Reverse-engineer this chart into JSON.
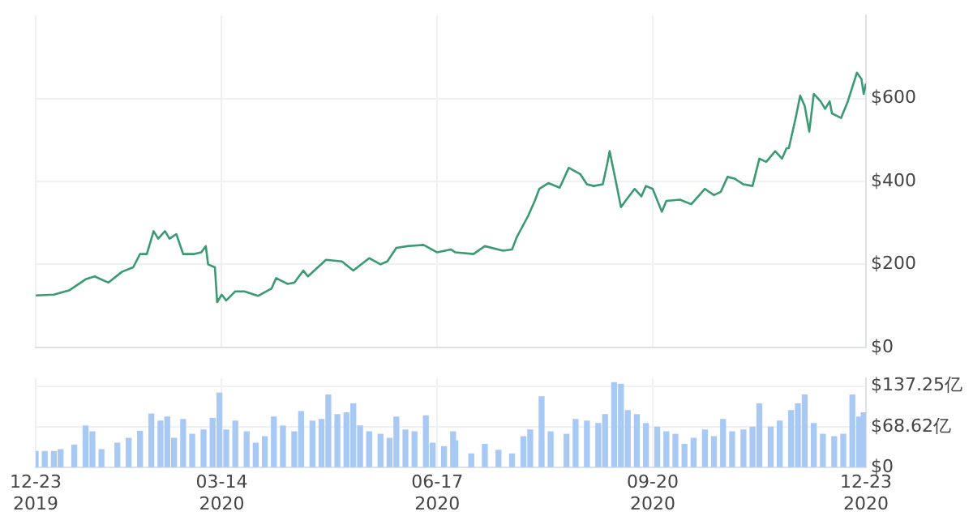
{
  "chart_data": [
    {
      "type": "line",
      "color": "#3a9a72",
      "grid": true,
      "tick_labels": "y",
      "x": [
        "2019-12-23",
        "2019-12-31",
        "2020-01-07",
        "2020-01-14",
        "2020-01-18",
        "2020-01-24",
        "2020-01-30",
        "2020-02-04",
        "2020-02-07",
        "2020-02-10",
        "2020-02-13",
        "2020-02-15",
        "2020-02-18",
        "2020-02-20",
        "2020-02-23",
        "2020-02-26",
        "2020-03-02",
        "2020-03-05",
        "2020-03-07",
        "2020-03-08",
        "2020-03-11",
        "2020-03-12",
        "2020-03-14",
        "2020-03-16",
        "2020-03-20",
        "2020-03-24",
        "2020-03-30",
        "2020-04-05",
        "2020-04-07",
        "2020-04-12",
        "2020-04-15",
        "2020-04-19",
        "2020-04-21",
        "2020-04-29",
        "2020-05-06",
        "2020-05-11",
        "2020-05-18",
        "2020-05-23",
        "2020-05-26",
        "2020-05-30",
        "2020-06-04",
        "2020-06-11",
        "2020-06-17",
        "2020-06-23",
        "2020-06-25",
        "2020-07-03",
        "2020-07-08",
        "2020-07-16",
        "2020-07-20",
        "2020-07-22",
        "2020-07-27",
        "2020-07-30",
        "2020-08-01",
        "2020-08-05",
        "2020-08-10",
        "2020-08-14",
        "2020-08-19",
        "2020-08-22",
        "2020-08-25",
        "2020-08-29",
        "2020-08-31",
        "2020-09-01",
        "2020-09-04",
        "2020-09-06",
        "2020-09-08",
        "2020-09-12",
        "2020-09-15",
        "2020-09-17",
        "2020-09-20",
        "2020-09-24",
        "2020-09-26",
        "2020-10-02",
        "2020-10-07",
        "2020-10-13",
        "2020-10-17",
        "2020-10-20",
        "2020-10-23",
        "2020-10-26",
        "2020-10-30",
        "2020-11-03",
        "2020-11-06",
        "2020-11-09",
        "2020-11-13",
        "2020-11-16",
        "2020-11-18",
        "2020-11-19",
        "2020-11-22",
        "2020-11-24",
        "2020-11-26",
        "2020-11-28",
        "2020-11-30",
        "2020-12-03",
        "2020-12-05",
        "2020-12-07",
        "2020-12-08",
        "2020-12-12",
        "2020-12-15",
        "2020-12-19",
        "2020-12-21",
        "2020-12-22",
        "2020-12-23"
      ],
      "values": [
        125,
        127,
        138,
        164,
        171,
        156,
        182,
        193,
        225,
        225,
        280,
        262,
        280,
        262,
        273,
        225,
        225,
        229,
        244,
        200,
        193,
        109,
        127,
        113,
        135,
        135,
        124,
        142,
        167,
        153,
        156,
        185,
        171,
        211,
        207,
        185,
        215,
        200,
        207,
        240,
        244,
        247,
        229,
        236,
        229,
        225,
        244,
        233,
        236,
        265,
        316,
        353,
        382,
        396,
        385,
        433,
        418,
        393,
        389,
        393,
        444,
        473,
        393,
        338,
        353,
        382,
        364,
        389,
        382,
        327,
        353,
        356,
        345,
        382,
        367,
        375,
        411,
        407,
        393,
        389,
        455,
        447,
        473,
        455,
        480,
        480,
        553,
        607,
        582,
        520,
        611,
        593,
        575,
        593,
        564,
        553,
        593,
        662,
        647,
        611,
        636
      ],
      "xlim": [
        "2019-12-23",
        "2020-12-23"
      ],
      "xticks": [
        {
          "value": "2019-12-23",
          "label": null
        },
        {
          "value": "2020-03-14",
          "label": null
        },
        {
          "value": "2020-06-17",
          "label": null
        },
        {
          "value": "2020-09-20",
          "label": null
        },
        {
          "value": "2020-12-23",
          "label": null
        }
      ],
      "ylim": [
        0,
        800
      ],
      "yticks": [
        {
          "value": 0,
          "label": "$0"
        },
        {
          "value": 200,
          "label": "$200"
        },
        {
          "value": 400,
          "label": "$400"
        },
        {
          "value": 600,
          "label": "$600"
        }
      ]
    },
    {
      "type": "bar",
      "color": "#a9c9f5",
      "grid": true,
      "x": [
        "2019-12-23",
        "2019-12-27",
        "2019-12-31",
        "2020-01-03",
        "2020-01-09",
        "2020-01-14",
        "2020-01-17",
        "2020-01-21",
        "2020-01-28",
        "2020-02-02",
        "2020-02-07",
        "2020-02-12",
        "2020-02-16",
        "2020-02-19",
        "2020-02-22",
        "2020-02-26",
        "2020-03-01",
        "2020-03-06",
        "2020-03-10",
        "2020-03-13",
        "2020-03-16",
        "2020-03-20",
        "2020-03-25",
        "2020-03-29",
        "2020-04-02",
        "2020-04-06",
        "2020-04-10",
        "2020-04-15",
        "2020-04-18",
        "2020-04-23",
        "2020-04-27",
        "2020-04-30",
        "2020-05-04",
        "2020-05-08",
        "2020-05-11",
        "2020-05-14",
        "2020-05-18",
        "2020-05-23",
        "2020-05-27",
        "2020-05-30",
        "2020-06-03",
        "2020-06-07",
        "2020-06-12",
        "2020-06-15",
        "2020-06-20",
        "2020-06-24",
        "2020-06-25",
        "2020-07-02",
        "2020-07-08",
        "2020-07-14",
        "2020-07-20",
        "2020-07-25",
        "2020-07-28",
        "2020-08-02",
        "2020-08-06",
        "2020-08-13",
        "2020-08-17",
        "2020-08-22",
        "2020-08-27",
        "2020-08-30",
        "2020-09-03",
        "2020-09-06",
        "2020-09-09",
        "2020-09-13",
        "2020-09-17",
        "2020-09-22",
        "2020-09-26",
        "2020-09-30",
        "2020-10-04",
        "2020-10-08",
        "2020-10-13",
        "2020-10-17",
        "2020-10-21",
        "2020-10-25",
        "2020-10-30",
        "2020-11-03",
        "2020-11-06",
        "2020-11-11",
        "2020-11-15",
        "2020-11-20",
        "2020-11-23",
        "2020-11-26",
        "2020-11-30",
        "2020-12-04",
        "2020-12-09",
        "2020-12-13",
        "2020-12-17",
        "2020-12-20",
        "2020-12-22"
      ],
      "values": [
        27,
        27,
        27,
        30,
        38,
        70,
        60,
        30,
        41,
        49,
        61,
        90,
        78,
        85,
        49,
        81,
        56,
        63,
        83,
        125,
        63,
        78,
        60,
        41,
        52,
        85,
        70,
        60,
        94,
        78,
        81,
        122,
        89,
        92,
        107,
        70,
        60,
        56,
        49,
        85,
        63,
        60,
        87,
        41,
        35,
        60,
        45,
        23,
        39,
        29,
        23,
        52,
        63,
        119,
        60,
        56,
        81,
        78,
        74,
        89,
        143,
        140,
        96,
        89,
        74,
        68,
        60,
        56,
        39,
        49,
        63,
        52,
        81,
        60,
        63,
        68,
        107,
        68,
        78,
        96,
        107,
        122,
        74,
        56,
        52,
        56,
        122,
        85,
        92
      ],
      "xlim": [
        "2019-12-23",
        "2020-12-23"
      ],
      "xticks": [
        {
          "value": "2019-12-23",
          "label": "12-23\n2019"
        },
        {
          "value": "2020-03-14",
          "label": "03-14\n2020"
        },
        {
          "value": "2020-06-17",
          "label": "06-17\n2020"
        },
        {
          "value": "2020-09-20",
          "label": "09-20\n2020"
        },
        {
          "value": "2020-12-23",
          "label": "12-23\n2020"
        }
      ],
      "ylim": [
        0,
        150
      ],
      "yticks": [
        {
          "value": 0,
          "label": "$0"
        },
        {
          "value": 68.62,
          "label": "$68.62亿"
        },
        {
          "value": 137.25,
          "label": "$137.25亿"
        }
      ]
    }
  ]
}
